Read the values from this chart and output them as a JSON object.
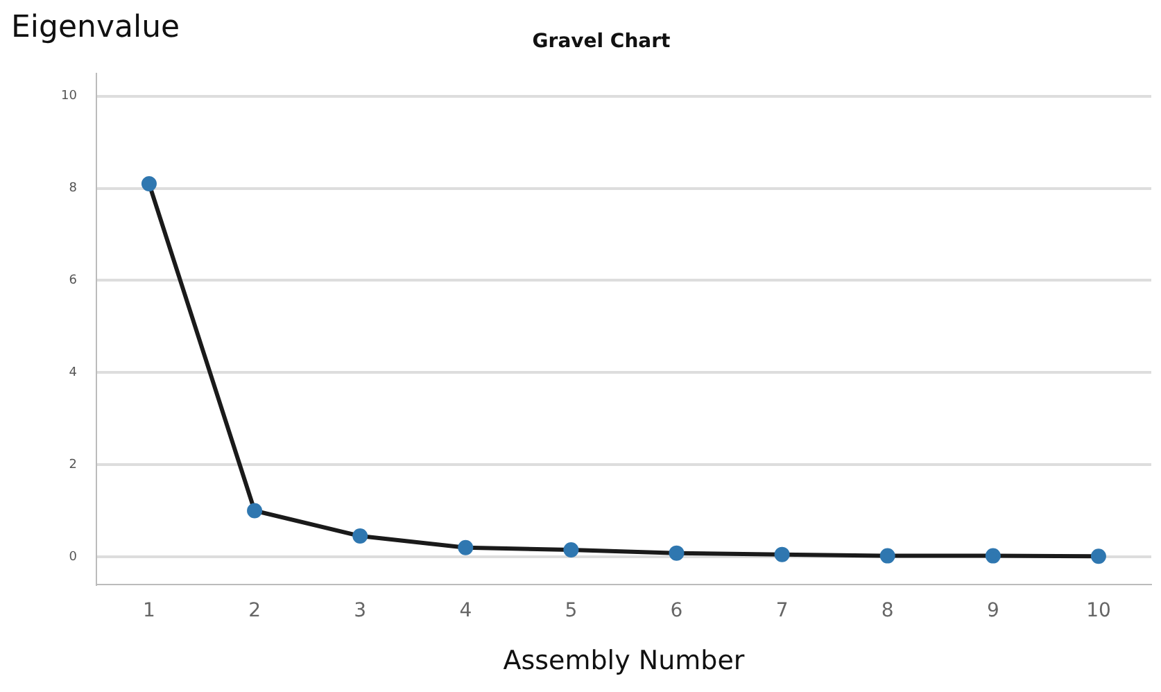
{
  "chart_data": {
    "type": "line",
    "title": "Gravel Chart",
    "xlabel": "Assembly Number",
    "ylabel": "Eigenvalue",
    "categories": [
      "1",
      "2",
      "3",
      "4",
      "5",
      "6",
      "7",
      "8",
      "9",
      "10"
    ],
    "series": [
      {
        "color": "#1a1a1a",
        "colors": [
          "#2f77b0",
          "#2f77b0",
          "#2f77b0",
          "#2f77b0",
          "#2f77b0",
          "#2f77b0",
          "#2f77b0",
          "#2f77b0",
          "#2f77b0",
          "#2f77b0"
        ],
        "values": [
          8.1,
          1.0,
          0.45,
          0.2,
          0.15,
          0.08,
          0.05,
          0.02,
          0.02,
          0.01
        ]
      }
    ],
    "ylim": [
      -0.6,
      10.5
    ],
    "yticks": [
      0,
      2,
      4,
      6,
      8,
      10
    ],
    "grid": "y",
    "marker": "circle",
    "line_style": "solid",
    "legend": false
  }
}
